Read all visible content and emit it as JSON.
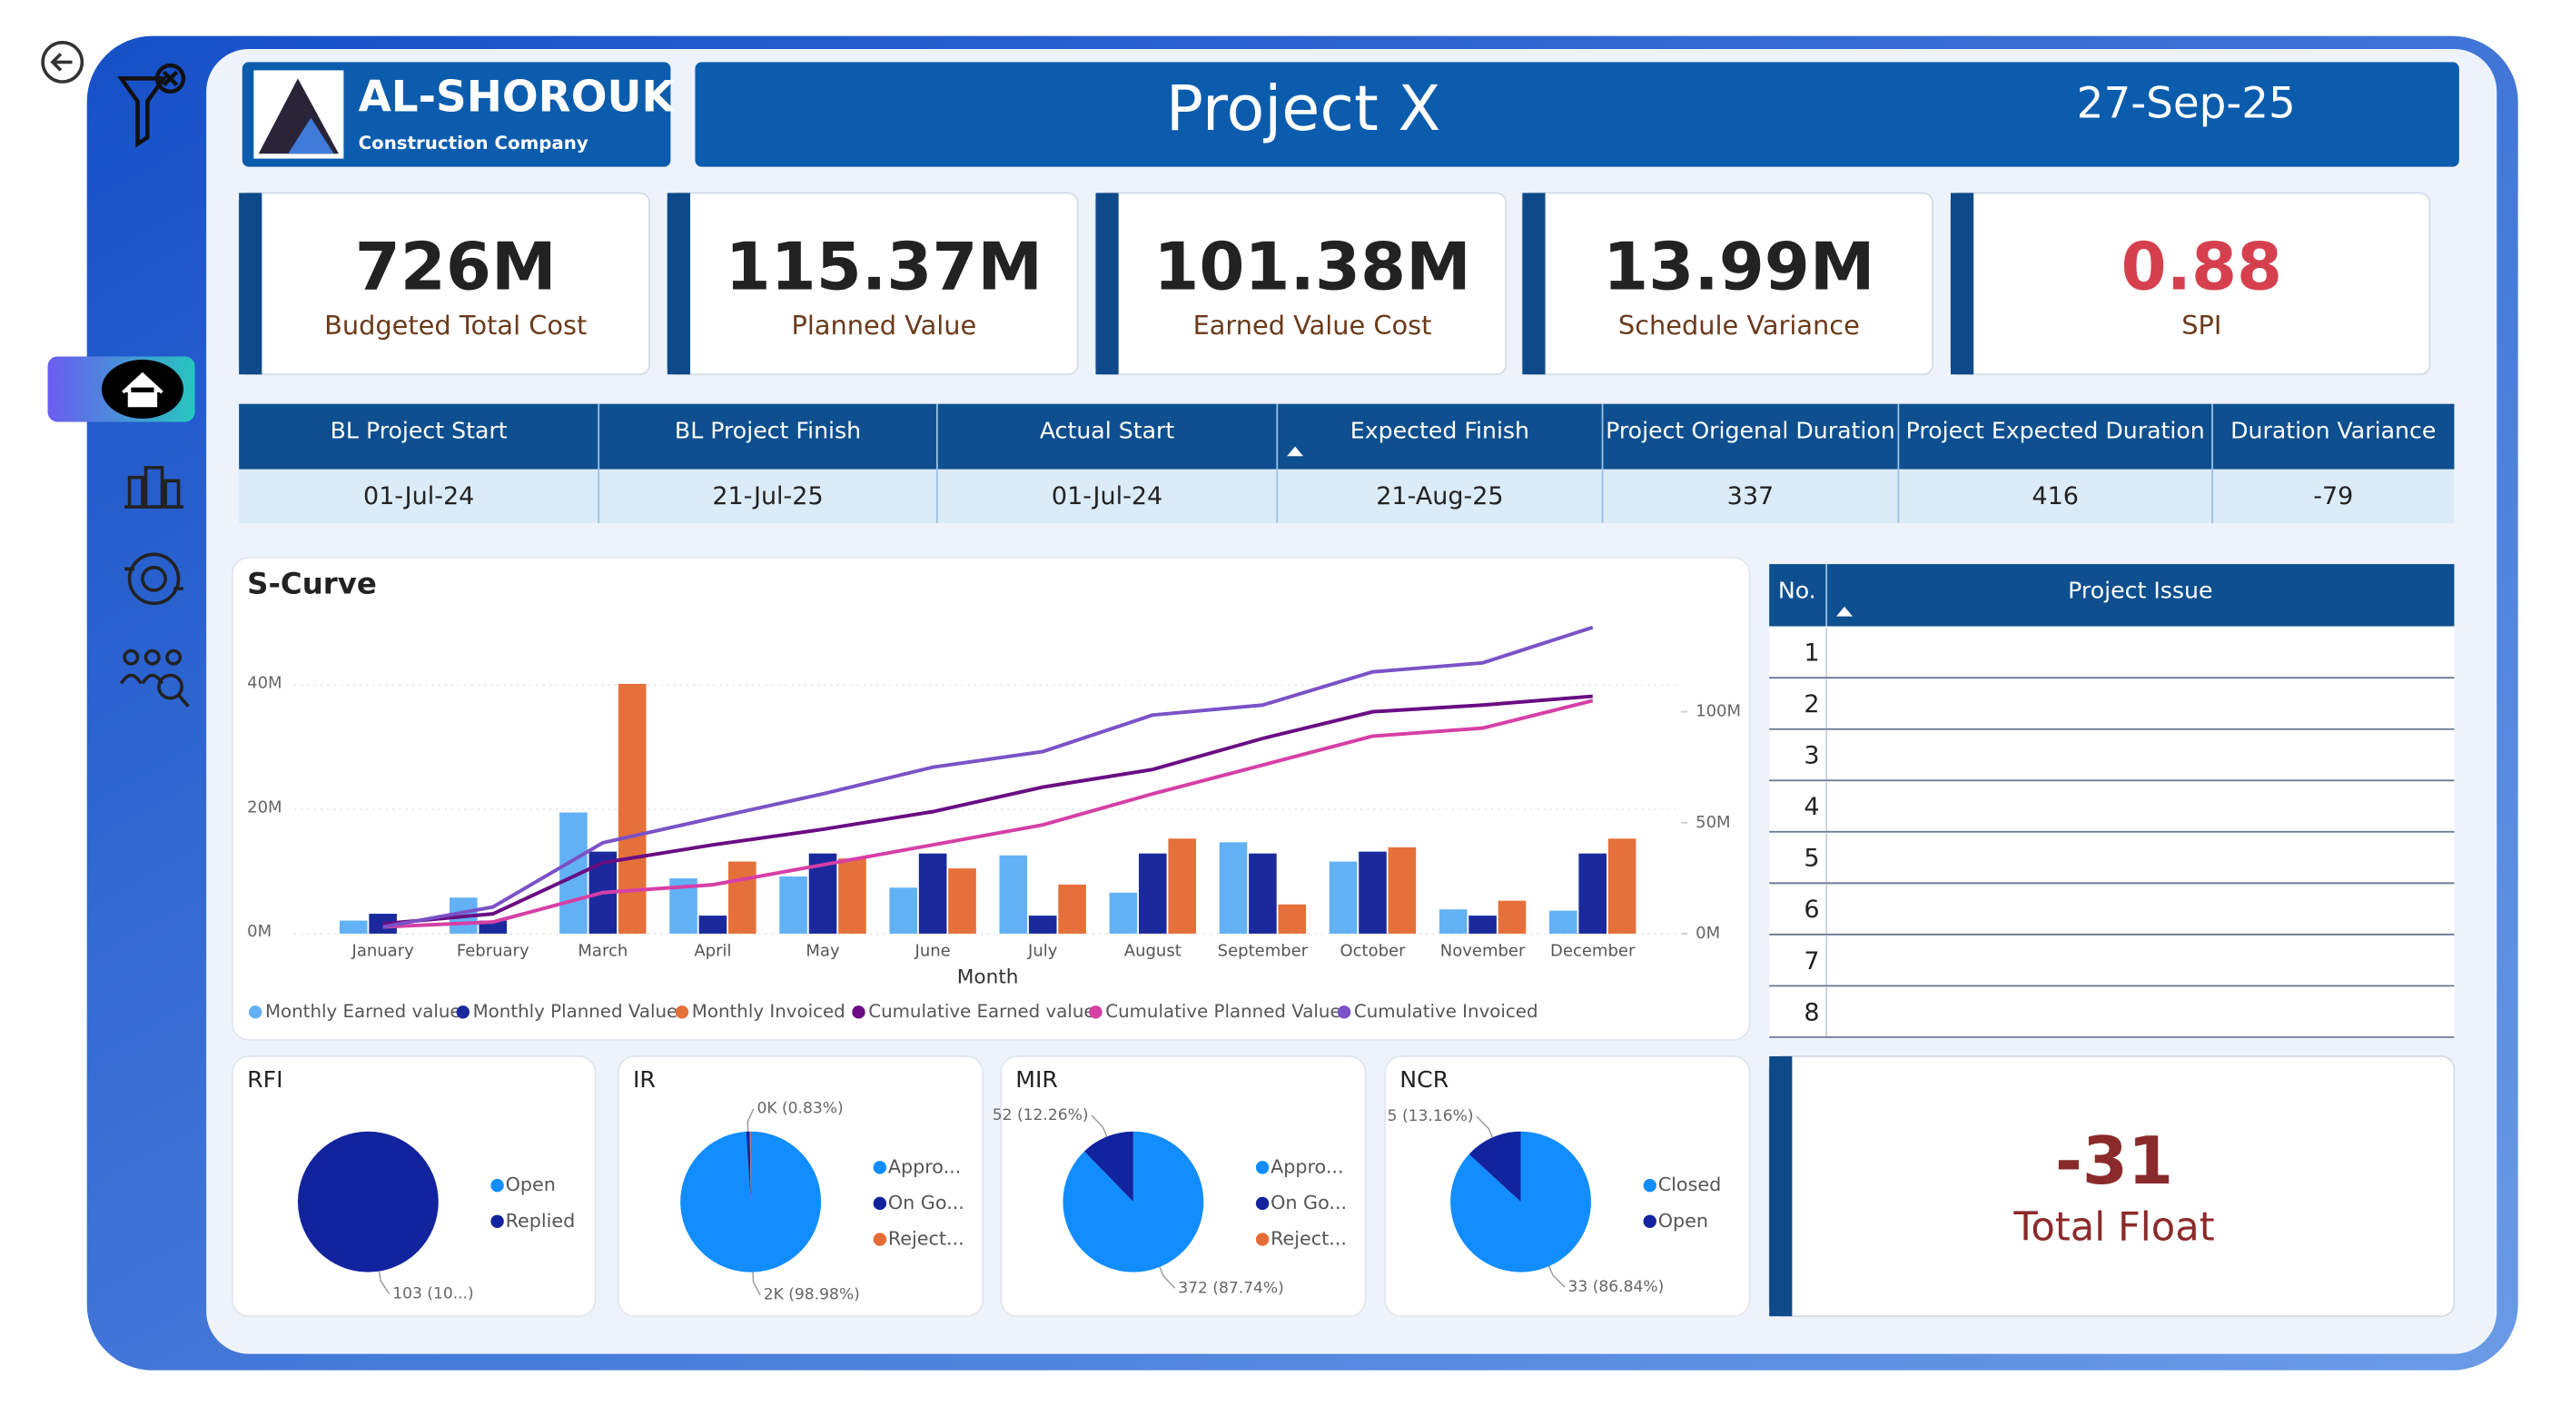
{
  "header": {
    "company": "AL-SHOROUK",
    "company_subtitle": "Construction Company",
    "title": "Project X",
    "date": "27-Sep-25"
  },
  "kpis": [
    {
      "value": "726M",
      "label": "Budgeted Total Cost",
      "value_color": "#222222"
    },
    {
      "value": "115.37M",
      "label": "Planned Value",
      "value_color": "#222222"
    },
    {
      "value": "101.38M",
      "label": "Earned Value Cost",
      "value_color": "#222222"
    },
    {
      "value": "13.99M",
      "label": "Schedule Variance",
      "value_color": "#222222"
    },
    {
      "value": "0.88",
      "label": "SPI",
      "value_color": "#d6404e"
    }
  ],
  "schedule_table": {
    "headers": [
      "BL Project Start",
      "BL Project Finish",
      "Actual Start",
      "Expected Finish",
      "Project Origenal Duration",
      "Project Expected Duration",
      "Duration Variance"
    ],
    "rows": [
      [
        "01-Jul-24",
        "21-Jul-25",
        "01-Jul-24",
        "21-Aug-25",
        337,
        416,
        -79
      ]
    ]
  },
  "issues_table": {
    "headers": [
      "No.",
      "Project Issue"
    ],
    "numbers": [
      1,
      2,
      3,
      4,
      5,
      6,
      7,
      8
    ]
  },
  "total_float": {
    "value": -31,
    "label": "Total Float"
  },
  "chart_data": [
    {
      "type": "bar",
      "title": "S-Curve",
      "x_label": "Month",
      "categories": [
        "January",
        "February",
        "March",
        "April",
        "May",
        "June",
        "July",
        "August",
        "September",
        "October",
        "November",
        "December"
      ],
      "series": [
        {
          "name": "Monthly Earned value",
          "color": "#63b1f5",
          "values": [
            2100000,
            5800000,
            19500000,
            8900000,
            9200000,
            7400000,
            12600000,
            6600000,
            14700000,
            11600000,
            3900000,
            3700000
          ]
        },
        {
          "name": "Monthly Planned Value",
          "color": "#1a2a9c",
          "values": [
            3200000,
            2100000,
            13200000,
            2900000,
            12900000,
            12900000,
            2900000,
            12900000,
            12900000,
            13200000,
            2900000,
            12900000
          ]
        },
        {
          "name": "Monthly Invoiced",
          "color": "#e6703a",
          "values": [
            0,
            0,
            40200000,
            11600000,
            12100000,
            10500000,
            7900000,
            15300000,
            4700000,
            13900000,
            5300000,
            15300000
          ]
        },
        {
          "name": "Cumulative Earned value",
          "color": "#6a0d83",
          "type": "line",
          "axis": "y2",
          "values": [
            4400000,
            8900000,
            32000000,
            40000000,
            47000000,
            55000000,
            66000000,
            74000000,
            88000000,
            100000000,
            103000000,
            107000000
          ]
        },
        {
          "name": "Cumulative Planned Value",
          "color": "#d63fa6",
          "type": "line",
          "axis": "y2",
          "values": [
            3000000,
            5200000,
            18500000,
            22000000,
            31000000,
            40000000,
            49000000,
            63000000,
            76000000,
            89000000,
            92600000,
            105000000
          ]
        },
        {
          "name": "Cumulative Invoiced",
          "color": "#7b52c7",
          "type": "line",
          "axis": "y2",
          "values": [
            3000000,
            12000000,
            41000000,
            52000000,
            63000000,
            75000000,
            82000000,
            98500000,
            103000000,
            118000000,
            122000000,
            138000000
          ]
        }
      ],
      "ylim": [
        0,
        50000000
      ],
      "yticks": [
        {
          "value": 0,
          "label": "0M"
        },
        {
          "value": 20000000,
          "label": "20M"
        },
        {
          "value": 40000000,
          "label": "40M"
        }
      ],
      "y2lim": [
        0,
        140000000
      ],
      "y2ticks": [
        {
          "value": 0,
          "label": "0M"
        },
        {
          "value": 50000000,
          "label": "50M"
        },
        {
          "value": 100000000,
          "label": "100M"
        }
      ],
      "grid": true
    },
    {
      "type": "pie",
      "title": "RFI",
      "categories": [
        "Open",
        "Replied"
      ],
      "colors": [
        "#118dff",
        "#12239e"
      ],
      "values": [
        0,
        103
      ],
      "value_labels": [
        null,
        "103 (10...)"
      ]
    },
    {
      "type": "pie",
      "title": "IR",
      "categories": [
        "Appro...",
        "On Go...",
        "Reject..."
      ],
      "colors": [
        "#118dff",
        "#12239e",
        "#e66c37"
      ],
      "values": [
        2028,
        17,
        4
      ],
      "value_labels": [
        "2K (98.98%)",
        "0K (0.83%)",
        null
      ]
    },
    {
      "type": "pie",
      "title": "MIR",
      "categories": [
        "Appro...",
        "On Go...",
        "Reject..."
      ],
      "colors": [
        "#118dff",
        "#12239e",
        "#e66c37"
      ],
      "values": [
        372,
        52,
        0
      ],
      "value_labels": [
        "372 (87.74%)",
        "52 (12.26%)",
        null
      ]
    },
    {
      "type": "pie",
      "title": "NCR",
      "categories": [
        "Closed",
        "Open"
      ],
      "colors": [
        "#118dff",
        "#12239e"
      ],
      "values": [
        33,
        5
      ],
      "value_labels": [
        "33 (86.84%)",
        "5 (13.16%)"
      ]
    }
  ]
}
